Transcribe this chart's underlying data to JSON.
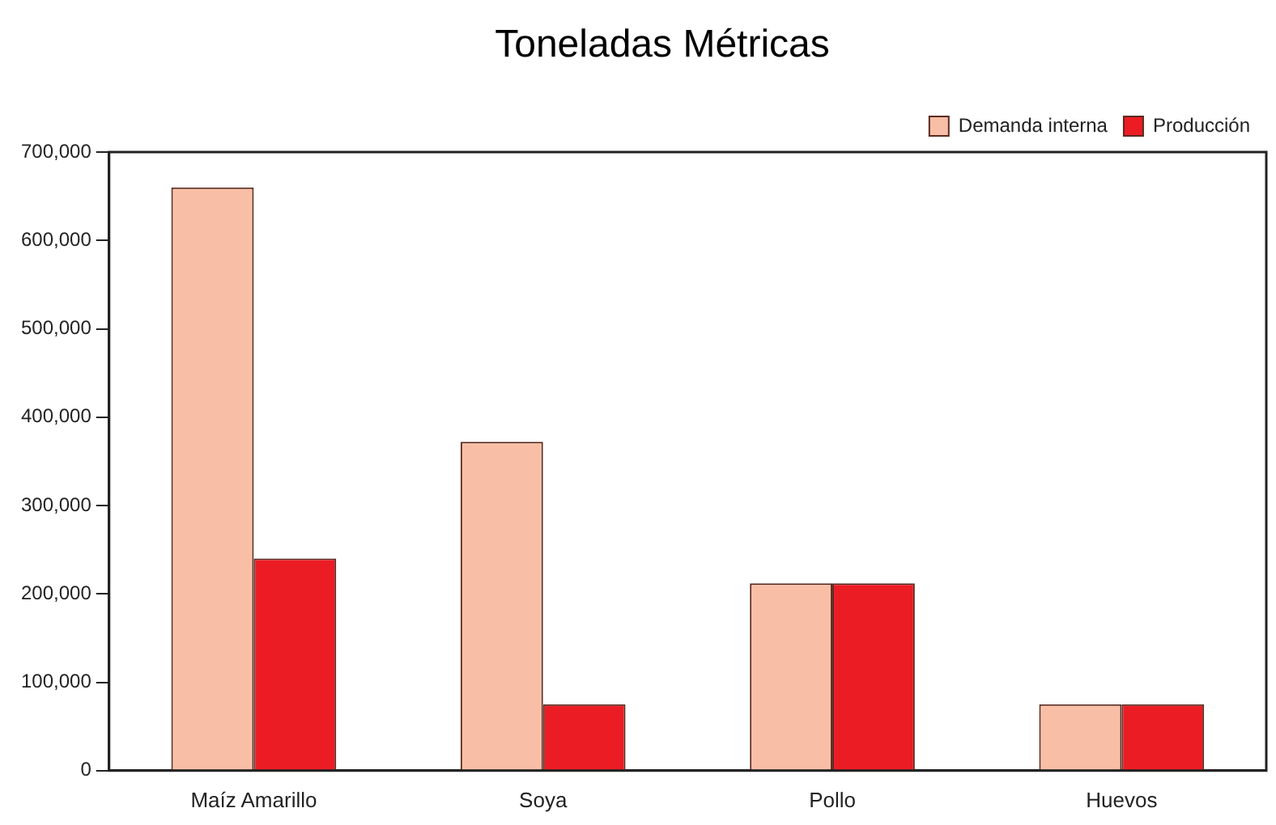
{
  "chart_data": {
    "type": "bar",
    "title": "Toneladas Métricas",
    "categories": [
      "Maíz Amarillo",
      "Soya",
      "Pollo",
      "Huevos"
    ],
    "series": [
      {
        "name": "Demanda interna",
        "color": "#f9bfa6",
        "values": [
          660000,
          372000,
          212000,
          75000
        ]
      },
      {
        "name": "Producción",
        "color": "#ec1c24",
        "values": [
          240000,
          75000,
          212000,
          75000
        ]
      }
    ],
    "ylim": [
      0,
      700000
    ],
    "yticks": [
      {
        "value": 0,
        "label": "0"
      },
      {
        "value": 100000,
        "label": "100,000"
      },
      {
        "value": 200000,
        "label": "200,000"
      },
      {
        "value": 300000,
        "label": "300,000"
      },
      {
        "value": 400000,
        "label": "400,000"
      },
      {
        "value": 500000,
        "label": "500,000"
      },
      {
        "value": 600000,
        "label": "600,000"
      },
      {
        "value": 700000,
        "label": "700,000"
      }
    ],
    "grid": false,
    "legend": "top right"
  }
}
